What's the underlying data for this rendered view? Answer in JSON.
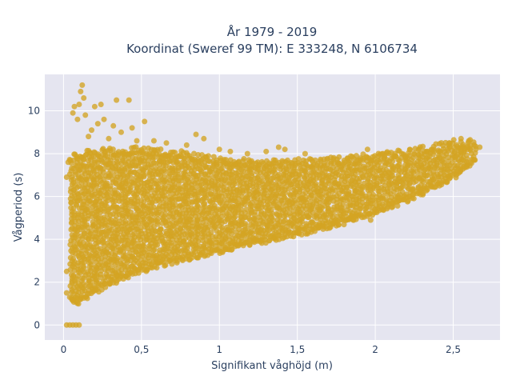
{
  "chart_data": {
    "type": "scatter",
    "title_line1": "År 1979 - 2019",
    "title_line2": "Koordinat (Sweref 99 TM): E 333248, N 6106734",
    "xlabel": "Signifikant våghöjd (m)",
    "ylabel": "Vågperiod (s)",
    "xlim": [
      -0.12,
      2.8
    ],
    "ylim": [
      -0.7,
      11.7
    ],
    "x_ticks": [
      0,
      0.5,
      1,
      1.5,
      2,
      2.5
    ],
    "x_tick_labels": [
      "0",
      "0,5",
      "1",
      "1,5",
      "2",
      "2,5"
    ],
    "y_ticks": [
      0,
      2,
      4,
      6,
      8,
      10
    ],
    "y_tick_labels": [
      "0",
      "2",
      "4",
      "6",
      "8",
      "10"
    ],
    "grid": true,
    "marker_color": "#d4a423",
    "plot_background": "#e5e5f0",
    "envelope": {
      "x": [
        0.05,
        0.1,
        0.25,
        0.5,
        0.75,
        1.0,
        1.25,
        1.5,
        1.75,
        2.0,
        2.25,
        2.5,
        2.65
      ],
      "y_min": [
        1.3,
        1.2,
        1.9,
        2.7,
        3.2,
        3.6,
        4.0,
        4.4,
        4.8,
        5.4,
        6.1,
        7.0,
        7.8
      ],
      "y_max": [
        7.5,
        7.8,
        7.9,
        8.0,
        7.8,
        7.5,
        7.4,
        7.4,
        7.5,
        7.7,
        7.9,
        8.3,
        8.3
      ]
    },
    "outliers": [
      {
        "x": 0.12,
        "y": 11.2
      },
      {
        "x": 0.11,
        "y": 10.9
      },
      {
        "x": 0.13,
        "y": 10.6
      },
      {
        "x": 0.07,
        "y": 10.2
      },
      {
        "x": 0.1,
        "y": 10.3
      },
      {
        "x": 0.2,
        "y": 10.2
      },
      {
        "x": 0.24,
        "y": 10.3
      },
      {
        "x": 0.34,
        "y": 10.5
      },
      {
        "x": 0.42,
        "y": 10.5
      },
      {
        "x": 0.06,
        "y": 9.9
      },
      {
        "x": 0.14,
        "y": 9.8
      },
      {
        "x": 0.26,
        "y": 9.6
      },
      {
        "x": 0.32,
        "y": 9.3
      },
      {
        "x": 0.22,
        "y": 9.4
      },
      {
        "x": 0.18,
        "y": 9.1
      },
      {
        "x": 0.37,
        "y": 9.0
      },
      {
        "x": 0.44,
        "y": 9.2
      },
      {
        "x": 0.52,
        "y": 9.5
      },
      {
        "x": 0.09,
        "y": 9.6
      },
      {
        "x": 0.16,
        "y": 8.8
      },
      {
        "x": 0.29,
        "y": 8.7
      },
      {
        "x": 0.47,
        "y": 8.6
      },
      {
        "x": 0.58,
        "y": 8.6
      },
      {
        "x": 0.66,
        "y": 8.5
      },
      {
        "x": 0.85,
        "y": 8.9
      },
      {
        "x": 0.9,
        "y": 8.7
      },
      {
        "x": 0.79,
        "y": 8.4
      },
      {
        "x": 1.0,
        "y": 8.2
      },
      {
        "x": 1.07,
        "y": 8.1
      },
      {
        "x": 1.18,
        "y": 8.0
      },
      {
        "x": 1.3,
        "y": 8.1
      },
      {
        "x": 1.42,
        "y": 8.2
      },
      {
        "x": 1.55,
        "y": 8.0
      },
      {
        "x": 1.38,
        "y": 8.3
      },
      {
        "x": 1.95,
        "y": 8.2
      },
      {
        "x": 2.05,
        "y": 8.0
      },
      {
        "x": 2.55,
        "y": 8.7
      },
      {
        "x": 2.6,
        "y": 8.6
      },
      {
        "x": 2.67,
        "y": 8.3
      },
      {
        "x": 1.97,
        "y": 4.9
      },
      {
        "x": 1.85,
        "y": 5.1
      },
      {
        "x": 1.7,
        "y": 4.8
      },
      {
        "x": 0.02,
        "y": 1.5
      },
      {
        "x": 0.04,
        "y": 1.3
      },
      {
        "x": 0.08,
        "y": 1.1
      },
      {
        "x": 0.03,
        "y": 7.6
      },
      {
        "x": 0.02,
        "y": 6.9
      },
      {
        "x": 0.02,
        "y": 2.5
      }
    ],
    "zero_period_points": [
      {
        "x": 0.02,
        "y": 0
      },
      {
        "x": 0.04,
        "y": 0
      },
      {
        "x": 0.06,
        "y": 0
      },
      {
        "x": 0.08,
        "y": 0
      },
      {
        "x": 0.1,
        "y": 0
      }
    ]
  }
}
